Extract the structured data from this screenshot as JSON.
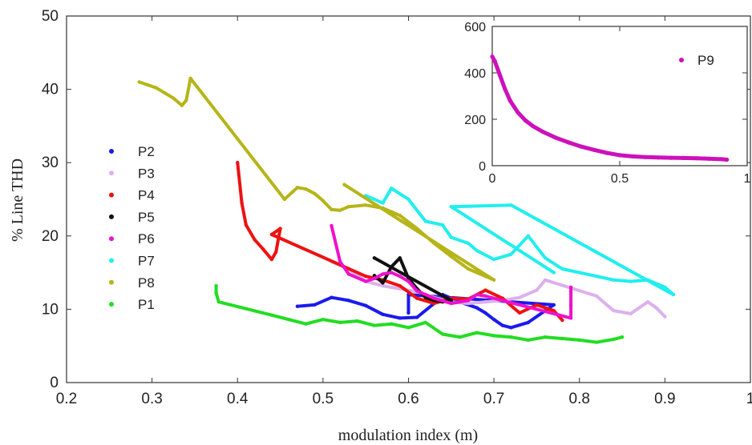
{
  "chart_data": [
    {
      "type": "scatter",
      "title": "",
      "xlabel": "modulation index (m)",
      "ylabel": "% Line THD",
      "xlim": [
        0.2,
        1
      ],
      "ylim": [
        0,
        50
      ],
      "x_ticks": [
        "0.2",
        "0.3",
        "0.4",
        "0.5",
        "0.6",
        "0.7",
        "0.8",
        "0.9",
        "1"
      ],
      "y_ticks": [
        "0",
        "10",
        "20",
        "30",
        "40",
        "50"
      ],
      "grid": false,
      "legend_position": "left",
      "series": [
        {
          "name": "P2",
          "color": "#1a1aee",
          "points": [
            [
              0.47,
              10.4
            ],
            [
              0.49,
              10.6
            ],
            [
              0.51,
              11.6
            ],
            [
              0.53,
              11.2
            ],
            [
              0.55,
              10.5
            ],
            [
              0.57,
              9.3
            ],
            [
              0.59,
              8.8
            ],
            [
              0.61,
              8.9
            ],
            [
              0.63,
              10.8
            ],
            [
              0.64,
              12.0
            ],
            [
              0.66,
              11.0
            ],
            [
              0.68,
              10.2
            ],
            [
              0.69,
              9.5
            ],
            [
              0.7,
              8.6
            ],
            [
              0.71,
              7.8
            ],
            [
              0.72,
              7.5
            ],
            [
              0.74,
              8.2
            ],
            [
              0.76,
              9.8
            ],
            [
              0.77,
              10.6
            ],
            [
              0.6,
              12.0
            ],
            [
              0.6,
              9.5
            ]
          ]
        },
        {
          "name": "P3",
          "color": "#dcb0ee",
          "points": [
            [
              0.51,
              16.5
            ],
            [
              0.53,
              15.5
            ],
            [
              0.55,
              13.8
            ],
            [
              0.57,
              13.2
            ],
            [
              0.59,
              12.8
            ],
            [
              0.61,
              12.4
            ],
            [
              0.63,
              11.6
            ],
            [
              0.65,
              11.0
            ],
            [
              0.67,
              10.8
            ],
            [
              0.69,
              11.0
            ],
            [
              0.71,
              11.2
            ],
            [
              0.73,
              11.6
            ],
            [
              0.75,
              12.6
            ],
            [
              0.76,
              14.0
            ],
            [
              0.82,
              11.8
            ],
            [
              0.84,
              9.8
            ],
            [
              0.86,
              9.4
            ],
            [
              0.88,
              11.0
            ],
            [
              0.89,
              10.2
            ],
            [
              0.9,
              9.0
            ]
          ]
        },
        {
          "name": "P4",
          "color": "#ee1111",
          "points": [
            [
              0.4,
              30.0
            ],
            [
              0.405,
              24.5
            ],
            [
              0.41,
              21.5
            ],
            [
              0.42,
              19.5
            ],
            [
              0.43,
              18.2
            ],
            [
              0.44,
              16.8
            ],
            [
              0.445,
              17.8
            ],
            [
              0.45,
              21.0
            ],
            [
              0.44,
              20.2
            ],
            [
              0.55,
              14.5
            ],
            [
              0.57,
              14.0
            ],
            [
              0.59,
              13.2
            ],
            [
              0.61,
              11.5
            ],
            [
              0.63,
              10.8
            ],
            [
              0.65,
              11.5
            ],
            [
              0.67,
              11.4
            ],
            [
              0.69,
              12.6
            ],
            [
              0.71,
              11.5
            ],
            [
              0.73,
              9.5
            ],
            [
              0.75,
              10.6
            ],
            [
              0.77,
              9.8
            ],
            [
              0.78,
              8.5
            ]
          ]
        },
        {
          "name": "P5",
          "color": "#111111",
          "points": [
            [
              0.56,
              14.6
            ],
            [
              0.57,
              13.6
            ],
            [
              0.58,
              15.8
            ],
            [
              0.59,
              17.0
            ],
            [
              0.6,
              14.2
            ],
            [
              0.61,
              12.8
            ],
            [
              0.62,
              11.6
            ],
            [
              0.63,
              11.2
            ],
            [
              0.64,
              11.0
            ],
            [
              0.65,
              11.2
            ],
            [
              0.56,
              17.0
            ]
          ]
        },
        {
          "name": "P6",
          "color": "#ee11cc",
          "points": [
            [
              0.51,
              21.4
            ],
            [
              0.52,
              16.5
            ],
            [
              0.53,
              14.8
            ],
            [
              0.55,
              13.8
            ],
            [
              0.56,
              14.2
            ],
            [
              0.57,
              14.8
            ],
            [
              0.58,
              15.0
            ],
            [
              0.59,
              14.5
            ],
            [
              0.6,
              13.8
            ],
            [
              0.61,
              12.5
            ],
            [
              0.63,
              11.5
            ],
            [
              0.65,
              10.8
            ],
            [
              0.67,
              11.2
            ],
            [
              0.68,
              12.0
            ],
            [
              0.69,
              11.8
            ],
            [
              0.79,
              8.8
            ],
            [
              0.79,
              10.5
            ],
            [
              0.79,
              13.0
            ]
          ]
        },
        {
          "name": "P7",
          "color": "#22eeee",
          "points": [
            [
              0.55,
              25.5
            ],
            [
              0.57,
              24.5
            ],
            [
              0.58,
              26.5
            ],
            [
              0.6,
              25.0
            ],
            [
              0.62,
              22.0
            ],
            [
              0.64,
              21.5
            ],
            [
              0.65,
              19.8
            ],
            [
              0.67,
              19.0
            ],
            [
              0.68,
              18.0
            ],
            [
              0.7,
              16.8
            ],
            [
              0.72,
              17.5
            ],
            [
              0.74,
              20.0
            ],
            [
              0.76,
              17.0
            ],
            [
              0.78,
              15.5
            ],
            [
              0.8,
              15.0
            ],
            [
              0.82,
              14.5
            ],
            [
              0.84,
              14.0
            ],
            [
              0.86,
              13.8
            ],
            [
              0.88,
              14.0
            ],
            [
              0.9,
              13.0
            ],
            [
              0.91,
              12.0
            ],
            [
              0.72,
              24.2
            ],
            [
              0.65,
              24.0
            ],
            [
              0.77,
              15.0
            ]
          ]
        },
        {
          "name": "P8",
          "color": "#b5b51a",
          "points": [
            [
              0.285,
              41.0
            ],
            [
              0.295,
              40.6
            ],
            [
              0.305,
              40.2
            ],
            [
              0.315,
              39.5
            ],
            [
              0.325,
              38.8
            ],
            [
              0.335,
              37.8
            ],
            [
              0.34,
              38.5
            ],
            [
              0.345,
              41.5
            ],
            [
              0.455,
              25.0
            ],
            [
              0.47,
              26.6
            ],
            [
              0.48,
              26.4
            ],
            [
              0.49,
              25.8
            ],
            [
              0.5,
              24.8
            ],
            [
              0.51,
              23.6
            ],
            [
              0.52,
              23.5
            ],
            [
              0.53,
              24.0
            ],
            [
              0.55,
              24.2
            ],
            [
              0.57,
              23.8
            ],
            [
              0.59,
              22.8
            ],
            [
              0.61,
              21.0
            ],
            [
              0.63,
              19.0
            ],
            [
              0.65,
              17.2
            ],
            [
              0.67,
              15.5
            ],
            [
              0.69,
              14.5
            ],
            [
              0.7,
              14.0
            ],
            [
              0.525,
              27.0
            ]
          ]
        },
        {
          "name": "P1",
          "color": "#22dd22",
          "points": [
            [
              0.375,
              13.2
            ],
            [
              0.375,
              12.2
            ],
            [
              0.378,
              11.0
            ],
            [
              0.44,
              9.2
            ],
            [
              0.46,
              8.6
            ],
            [
              0.48,
              8.0
            ],
            [
              0.5,
              8.6
            ],
            [
              0.52,
              8.2
            ],
            [
              0.54,
              8.4
            ],
            [
              0.56,
              7.8
            ],
            [
              0.58,
              8.0
            ],
            [
              0.6,
              7.5
            ],
            [
              0.62,
              8.2
            ],
            [
              0.64,
              6.6
            ],
            [
              0.66,
              6.2
            ],
            [
              0.68,
              6.8
            ],
            [
              0.7,
              6.4
            ],
            [
              0.72,
              6.2
            ],
            [
              0.74,
              5.8
            ],
            [
              0.76,
              6.2
            ],
            [
              0.78,
              6.0
            ],
            [
              0.8,
              5.8
            ],
            [
              0.82,
              5.5
            ],
            [
              0.84,
              5.9
            ],
            [
              0.85,
              6.2
            ]
          ]
        }
      ]
    },
    {
      "type": "scatter",
      "title": "",
      "xlabel": "",
      "ylabel": "",
      "xlim": [
        0,
        1
      ],
      "ylim": [
        0,
        600
      ],
      "x_ticks": [
        "0",
        "0.5",
        "1"
      ],
      "y_ticks": [
        "0",
        "200",
        "400",
        "600"
      ],
      "grid": false,
      "legend_position": "top-right",
      "series": [
        {
          "name": "P9",
          "color": "#cc11bb",
          "points": [
            [
              0.0,
              470
            ],
            [
              0.01,
              450
            ],
            [
              0.02,
              420
            ],
            [
              0.03,
              390
            ],
            [
              0.05,
              330
            ],
            [
              0.07,
              280
            ],
            [
              0.1,
              230
            ],
            [
              0.13,
              195
            ],
            [
              0.16,
              170
            ],
            [
              0.2,
              145
            ],
            [
              0.25,
              120
            ],
            [
              0.3,
              100
            ],
            [
              0.35,
              82
            ],
            [
              0.4,
              68
            ],
            [
              0.45,
              55
            ],
            [
              0.5,
              45
            ],
            [
              0.55,
              40
            ],
            [
              0.6,
              37
            ],
            [
              0.65,
              35
            ],
            [
              0.7,
              34
            ],
            [
              0.75,
              33
            ],
            [
              0.8,
              32
            ],
            [
              0.85,
              30
            ],
            [
              0.9,
              28
            ],
            [
              0.92,
              26
            ]
          ]
        }
      ]
    }
  ]
}
